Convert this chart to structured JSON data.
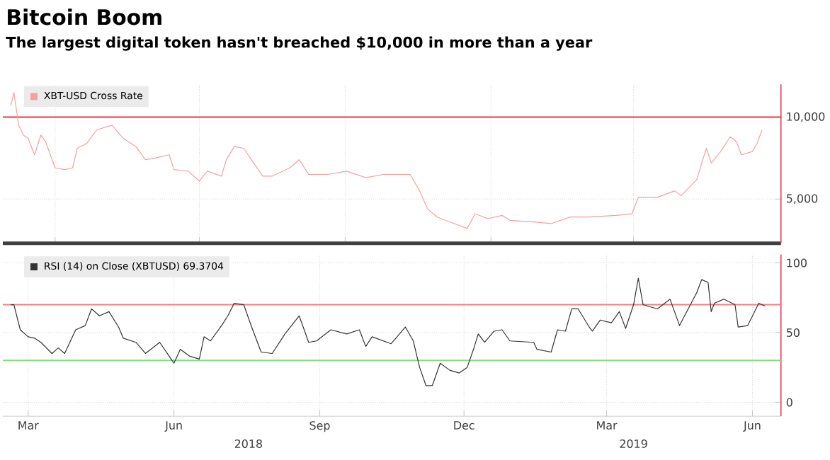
{
  "chart_data": [
    {
      "type": "line",
      "title": "Bitcoin Boom",
      "subtitle": "The largest digital token hasn't breached $10,000 in more than a year",
      "series": [
        {
          "name": "XBT-USD Cross Rate",
          "color": "#f4a0a0",
          "x": [
            "2018-03-04",
            "2018-03-06",
            "2018-03-09",
            "2018-03-12",
            "2018-03-15",
            "2018-03-19",
            "2018-03-23",
            "2018-03-26",
            "2018-04-01",
            "2018-04-07",
            "2018-04-12",
            "2018-04-15",
            "2018-04-21",
            "2018-04-27",
            "2018-05-03",
            "2018-05-07",
            "2018-05-14",
            "2018-05-22",
            "2018-05-28",
            "2018-06-03",
            "2018-06-12",
            "2018-06-15",
            "2018-06-24",
            "2018-07-01",
            "2018-07-06",
            "2018-07-15",
            "2018-07-18",
            "2018-07-23",
            "2018-07-29",
            "2018-08-05",
            "2018-08-10",
            "2018-08-16",
            "2018-08-27",
            "2018-09-02",
            "2018-09-08",
            "2018-09-20",
            "2018-10-02",
            "2018-10-14",
            "2018-10-25",
            "2018-11-11",
            "2018-11-17",
            "2018-11-22",
            "2018-11-28",
            "2018-12-09",
            "2018-12-17",
            "2018-12-22",
            "2018-12-30",
            "2019-01-08",
            "2019-01-13",
            "2019-01-28",
            "2019-02-08",
            "2019-02-20",
            "2019-03-04",
            "2019-03-21",
            "2019-03-31",
            "2019-04-04",
            "2019-04-16",
            "2019-04-27",
            "2019-05-01",
            "2019-05-11",
            "2019-05-14",
            "2019-05-17",
            "2019-05-20",
            "2019-05-26",
            "2019-06-01",
            "2019-06-05",
            "2019-06-08",
            "2019-06-15",
            "2019-06-18",
            "2019-06-21"
          ],
          "values": [
            10700,
            11500,
            9500,
            8900,
            8700,
            7700,
            8900,
            8500,
            6900,
            6800,
            6900,
            8100,
            8400,
            9200,
            9400,
            9500,
            8700,
            8200,
            7400,
            7500,
            7700,
            6800,
            6700,
            6100,
            6700,
            6400,
            7400,
            8200,
            8100,
            7100,
            6400,
            6400,
            6900,
            7400,
            6500,
            6500,
            6700,
            6300,
            6500,
            6500,
            5500,
            4400,
            3900,
            3500,
            3200,
            4100,
            3800,
            4000,
            3700,
            3600,
            3500,
            3900,
            3900,
            4000,
            4100,
            5100,
            5100,
            5500,
            5200,
            6200,
            7200,
            8100,
            7200,
            7900,
            8800,
            8500,
            7700,
            7900,
            8400,
            9200
          ]
        }
      ],
      "xlim": [
        "2018-02-27",
        "2019-07-03"
      ],
      "xticks": [
        {
          "value": "2018-04-01",
          "label": null
        },
        {
          "value": "2018-07-01",
          "label": null
        },
        {
          "value": "2018-10-01",
          "label": null
        },
        {
          "value": "2019-01-01",
          "label": null
        },
        {
          "value": "2019-04-01",
          "label": null
        }
      ],
      "ylim": [
        2300,
        12000
      ],
      "yticks": [
        {
          "value": 5000,
          "label": "5,000"
        },
        {
          "value": 10000,
          "label": "10,000"
        }
      ],
      "ref_lines": [
        {
          "axis": "y",
          "value": 10000,
          "color": "#e8384f"
        }
      ],
      "grid": true,
      "legend": "top left",
      "tick_labels": "y"
    },
    {
      "type": "line",
      "series": [
        {
          "name": "RSI (14)  on Close (XBTUSD) 69.3704",
          "color": "#333333",
          "x": [
            "2018-03-04",
            "2018-03-06",
            "2018-03-10",
            "2018-03-15",
            "2018-03-19",
            "2018-03-23",
            "2018-03-30",
            "2018-04-03",
            "2018-04-07",
            "2018-04-14",
            "2018-04-20",
            "2018-04-24",
            "2018-04-29",
            "2018-05-05",
            "2018-05-11",
            "2018-05-14",
            "2018-05-22",
            "2018-05-28",
            "2018-06-06",
            "2018-06-12",
            "2018-06-15",
            "2018-06-19",
            "2018-06-25",
            "2018-07-01",
            "2018-07-04",
            "2018-07-08",
            "2018-07-15",
            "2018-07-19",
            "2018-07-23",
            "2018-07-29",
            "2018-08-03",
            "2018-08-09",
            "2018-08-16",
            "2018-08-24",
            "2018-09-02",
            "2018-09-08",
            "2018-09-13",
            "2018-09-22",
            "2018-10-02",
            "2018-10-10",
            "2018-10-14",
            "2018-10-18",
            "2018-10-30",
            "2018-11-02",
            "2018-11-08",
            "2018-11-13",
            "2018-11-17",
            "2018-11-21",
            "2018-11-25",
            "2018-11-30",
            "2018-12-06",
            "2018-12-12",
            "2018-12-17",
            "2018-12-21",
            "2018-12-24",
            "2018-12-28",
            "2019-01-03",
            "2019-01-08",
            "2019-01-13",
            "2019-01-28",
            "2019-01-30",
            "2019-02-08",
            "2019-02-12",
            "2019-02-17",
            "2019-02-21",
            "2019-02-25",
            "2019-03-04",
            "2019-03-06",
            "2019-03-11",
            "2019-03-18",
            "2019-03-23",
            "2019-03-27",
            "2019-04-01",
            "2019-04-04",
            "2019-04-07",
            "2019-04-16",
            "2019-04-24",
            "2019-04-30",
            "2019-05-11",
            "2019-05-14",
            "2019-05-18",
            "2019-05-20",
            "2019-05-22",
            "2019-05-28",
            "2019-06-04",
            "2019-06-06",
            "2019-06-12",
            "2019-06-19",
            "2019-06-23"
          ],
          "values": [
            70,
            70,
            52,
            47,
            46,
            43,
            35,
            39,
            35,
            52,
            55,
            67,
            62,
            65,
            54,
            46,
            43,
            35,
            43,
            33,
            28,
            38,
            33,
            31,
            47,
            44,
            55,
            62,
            71,
            70,
            54,
            36,
            35,
            49,
            62,
            43,
            44,
            52,
            49,
            52,
            40,
            47,
            42,
            46,
            54,
            44,
            25,
            12,
            12,
            28,
            23,
            21,
            25,
            38,
            49,
            43,
            51,
            52,
            44,
            43,
            38,
            36,
            52,
            51,
            67,
            67,
            54,
            51,
            59,
            57,
            65,
            53,
            70,
            89,
            70,
            67,
            74,
            55,
            79,
            88,
            86,
            65,
            71,
            74,
            70,
            54,
            55,
            71,
            69
          ]
        }
      ],
      "xlim": [
        "2018-02-27",
        "2019-07-03"
      ],
      "xticks": [
        {
          "value": "2018-03-15",
          "label": "Mar"
        },
        {
          "value": "2018-06-15",
          "label": "Jun"
        },
        {
          "value": "2018-09-15",
          "label": "Sep"
        },
        {
          "value": "2018-12-15",
          "label": "Dec"
        },
        {
          "value": "2019-03-15",
          "label": "Mar"
        },
        {
          "value": "2019-06-15",
          "label": "Jun"
        }
      ],
      "x2lim": [
        "2018-02-27",
        "2019-07-03"
      ],
      "x2ticks": [
        {
          "value": "2018-08-01",
          "label": "2018"
        },
        {
          "value": "2019-04-01",
          "label": "2019"
        }
      ],
      "ylim": [
        -10,
        106
      ],
      "yticks": [
        0,
        50,
        100
      ],
      "ref_lines": [
        {
          "axis": "y",
          "value": 70,
          "color": "#f08080"
        },
        {
          "axis": "y",
          "value": 30,
          "color": "#7ee07e"
        }
      ],
      "grid": true,
      "legend": "top left"
    }
  ]
}
